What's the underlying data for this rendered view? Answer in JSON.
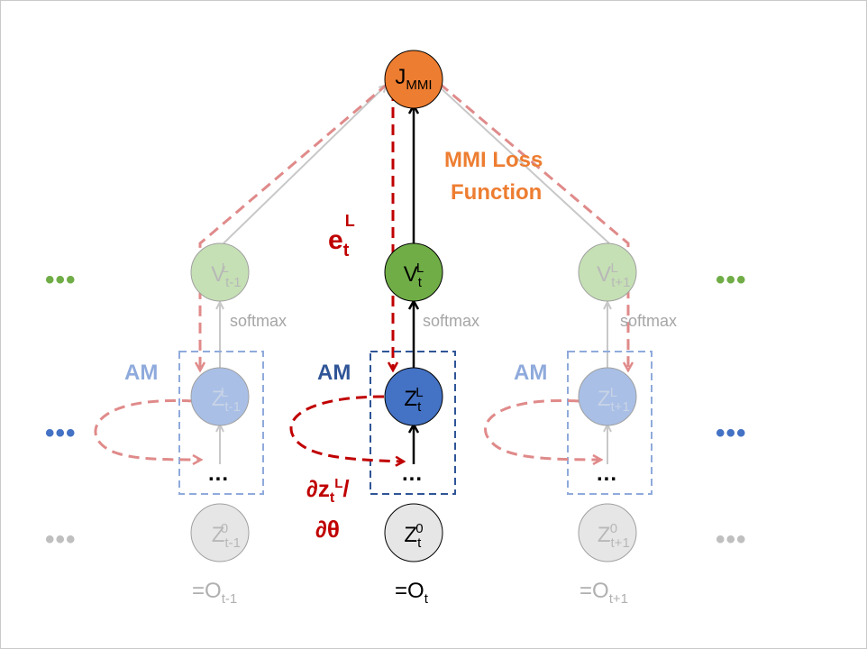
{
  "loss_node": {
    "base": "J",
    "sub": "MMI"
  },
  "loss_label": {
    "line1": "MMI Loss",
    "line2": "Function"
  },
  "error_label": {
    "base": "e",
    "sub": "t",
    "sup": "L"
  },
  "grad_label": {
    "line1_base": "∂z",
    "line1_sub": "t",
    "line1_sup": "L",
    "line1_tail": "/",
    "line2": "∂θ"
  },
  "columns": [
    {
      "v_node": {
        "base": "V",
        "sub": "t-1",
        "sup": "L"
      },
      "softmax": "softmax",
      "am": "AM",
      "z_top": {
        "base": "Z",
        "sub": "t-1",
        "sup": "L"
      },
      "ellipsis": "...",
      "z_bottom": {
        "base": "Z",
        "sub": "t-1",
        "sup": "0"
      },
      "obs": {
        "prefix": "=O",
        "sub": "t-1"
      }
    },
    {
      "v_node": {
        "base": "V",
        "sub": "t",
        "sup": "L"
      },
      "softmax": "softmax",
      "am": "AM",
      "z_top": {
        "base": "Z",
        "sub": "t",
        "sup": "L"
      },
      "ellipsis": "...",
      "z_bottom": {
        "base": "Z",
        "sub": "t",
        "sup": "0"
      },
      "obs": {
        "prefix": "=O",
        "sub": "t"
      }
    },
    {
      "v_node": {
        "base": "V",
        "sub": "t+1",
        "sup": "L"
      },
      "softmax": "softmax",
      "am": "AM",
      "z_top": {
        "base": "Z",
        "sub": "t+1",
        "sup": "L"
      },
      "ellipsis": "...",
      "z_bottom": {
        "base": "Z",
        "sub": "t+1",
        "sup": "0"
      },
      "obs": {
        "prefix": "=O",
        "sub": "t+1"
      }
    }
  ],
  "side_dots": "•••",
  "colors": {
    "loss": "#ed7d31",
    "green_active": "#70ad47",
    "green_faded": "#c5e0b4",
    "blue_active": "#4472c4",
    "blue_faded": "#a9bfe6",
    "gray_node": "#e6e6e6",
    "error_red": "#c00000",
    "faded_red": "#e08a8a",
    "am_blue_faded": "#8faadc",
    "am_blue_active": "#2f5597"
  }
}
